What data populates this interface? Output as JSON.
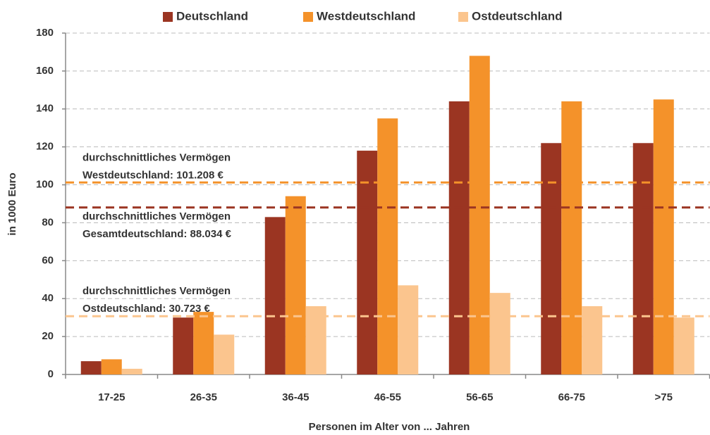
{
  "chart_data": {
    "type": "bar",
    "categories": [
      "17-25",
      "26-35",
      "36-45",
      "46-55",
      "56-65",
      "66-75",
      ">75"
    ],
    "series": [
      {
        "name": "Deutschland",
        "color": "#9b3522",
        "values": [
          7,
          30,
          83,
          118,
          144,
          122,
          122
        ]
      },
      {
        "name": "Westdeutschland",
        "color": "#f4922a",
        "values": [
          8,
          33,
          94,
          135,
          168,
          144,
          145
        ]
      },
      {
        "name": "Ostdeutschland",
        "color": "#fbc58e",
        "values": [
          3,
          21,
          36,
          47,
          43,
          36,
          30
        ]
      }
    ],
    "reference_lines": [
      {
        "value": 101.208,
        "color": "#f4922a",
        "label": [
          "durchschnittliches Vermögen",
          "Westdeutschland: 101.208 €"
        ]
      },
      {
        "value": 88.034,
        "color": "#9b3522",
        "label": [
          "durchschnittliches Vermögen",
          "Gesamtdeutschland: 88.034 €"
        ]
      },
      {
        "value": 30.723,
        "color": "#fbc58e",
        "label": [
          "durchschnittliches Vermögen",
          "Ostdeutschland: 30.723 €"
        ]
      }
    ],
    "y_label": "in 1000 Euro",
    "x_label": "Personen im Alter von ... Jahren",
    "ylim": [
      0,
      180
    ],
    "yticks": [
      0,
      20,
      40,
      60,
      80,
      100,
      120,
      140,
      160,
      180
    ],
    "grid": true,
    "legend": "top"
  }
}
